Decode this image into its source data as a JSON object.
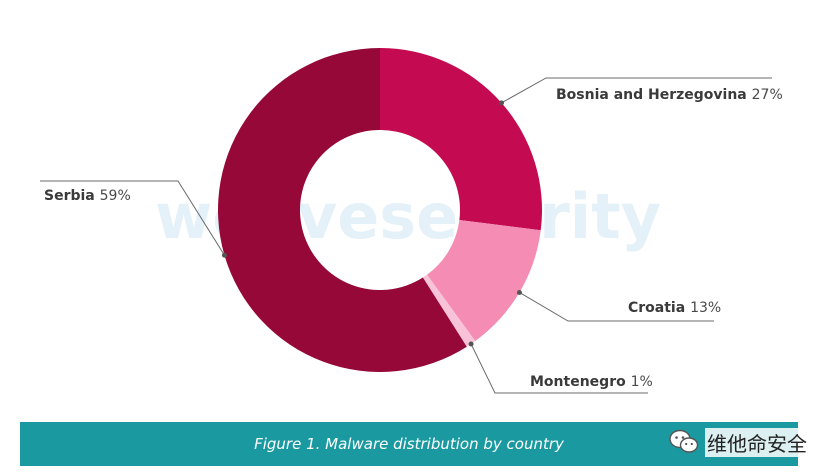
{
  "chart_data": {
    "type": "pie",
    "style": "donut",
    "slices": [
      {
        "label": "Bosnia and Herzegovina",
        "value": 27,
        "display": "27%",
        "color": "#c40a50"
      },
      {
        "label": "Croatia",
        "value": 13,
        "display": "13%",
        "color": "#f58cb4"
      },
      {
        "label": "Montenegro",
        "value": 1,
        "display": "1%",
        "color": "#f8c3d8"
      },
      {
        "label": "Serbia",
        "value": 59,
        "display": "59%",
        "color": "#960838"
      }
    ]
  },
  "watermark": "welivesecurity",
  "caption": "Figure 1. Malware distribution by country",
  "caption_bar_color": "#1a9aa0",
  "badge": {
    "icon": "wechat-icon",
    "label": "维他命安全"
  }
}
